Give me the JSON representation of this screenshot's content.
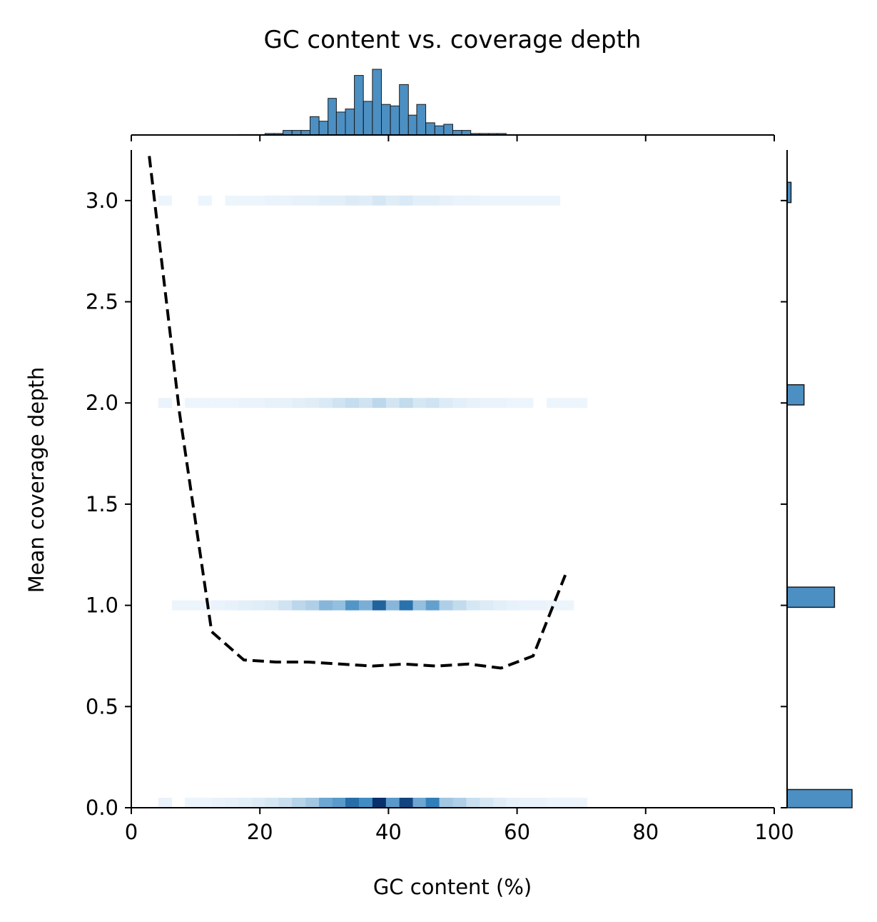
{
  "chart_data": {
    "type": "heatmap",
    "title": "GC content vs. coverage depth",
    "xlabel": "GC content (%)",
    "ylabel": "Mean coverage depth",
    "xlim": [
      0,
      100
    ],
    "ylim": [
      0,
      3.25
    ],
    "xticks": [
      "0",
      "20",
      "40",
      "60",
      "80",
      "100"
    ],
    "yticks": [
      "0.0",
      "0.5",
      "1.0",
      "1.5",
      "2.0",
      "2.5",
      "3.0"
    ],
    "grid": false,
    "colors": {
      "heat_low": "#f7fbff",
      "heat_high": "#08306b",
      "hist": "#4c8fc2",
      "trend": "#000000"
    },
    "heat_bin_width": 2.083,
    "heat_rows": [
      {
        "y": 0.0,
        "x": [
          4.2,
          8.3,
          10.4,
          12.5,
          14.6,
          16.7,
          18.8,
          20.8,
          22.9,
          25.0,
          27.1,
          29.2,
          31.3,
          33.3,
          35.4,
          37.5,
          39.6,
          41.7,
          43.8,
          45.8,
          47.9,
          50.0,
          52.1,
          54.2,
          56.3,
          58.3,
          60.4,
          62.5,
          64.6,
          66.7,
          68.8
        ],
        "density": [
          0.04,
          0.03,
          0.03,
          0.04,
          0.05,
          0.06,
          0.08,
          0.1,
          0.14,
          0.2,
          0.26,
          0.42,
          0.48,
          0.7,
          0.55,
          1.0,
          0.48,
          0.9,
          0.42,
          0.62,
          0.26,
          0.22,
          0.14,
          0.1,
          0.07,
          0.05,
          0.04,
          0.04,
          0.03,
          0.03,
          0.03
        ]
      },
      {
        "y": 1.0,
        "x": [
          6.3,
          8.3,
          10.4,
          12.5,
          14.6,
          16.7,
          18.8,
          20.8,
          22.9,
          25.0,
          27.1,
          29.2,
          31.3,
          33.3,
          35.4,
          37.5,
          39.6,
          41.7,
          43.8,
          45.8,
          47.9,
          50.0,
          52.1,
          54.2,
          56.3,
          58.3,
          60.4,
          62.5,
          64.6,
          66.7
        ],
        "density": [
          0.03,
          0.03,
          0.03,
          0.04,
          0.05,
          0.06,
          0.07,
          0.08,
          0.12,
          0.18,
          0.22,
          0.34,
          0.3,
          0.5,
          0.38,
          0.75,
          0.34,
          0.68,
          0.3,
          0.45,
          0.22,
          0.16,
          0.1,
          0.08,
          0.06,
          0.05,
          0.04,
          0.04,
          0.03,
          0.03
        ]
      },
      {
        "y": 2.0,
        "x": [
          4.2,
          8.3,
          10.4,
          12.5,
          14.6,
          16.7,
          18.8,
          20.8,
          22.9,
          25.0,
          27.1,
          29.2,
          31.3,
          33.3,
          35.4,
          37.5,
          39.6,
          41.7,
          43.8,
          45.8,
          47.9,
          50.0,
          52.1,
          54.2,
          56.3,
          58.3,
          60.4,
          64.6,
          66.7,
          68.8
        ],
        "density": [
          0.04,
          0.03,
          0.03,
          0.03,
          0.03,
          0.04,
          0.04,
          0.05,
          0.05,
          0.06,
          0.07,
          0.09,
          0.12,
          0.15,
          0.12,
          0.18,
          0.11,
          0.16,
          0.1,
          0.12,
          0.08,
          0.06,
          0.05,
          0.04,
          0.04,
          0.03,
          0.03,
          0.03,
          0.03,
          0.03
        ]
      },
      {
        "y": 3.0,
        "x": [
          4.2,
          10.4,
          14.6,
          16.7,
          18.8,
          20.8,
          22.9,
          25.0,
          27.1,
          29.2,
          31.3,
          33.3,
          35.4,
          37.5,
          39.6,
          41.7,
          43.8,
          45.8,
          47.9,
          50.0,
          52.1,
          54.2,
          56.3,
          58.3,
          60.4,
          62.5,
          64.6
        ],
        "density": [
          0.03,
          0.03,
          0.03,
          0.03,
          0.03,
          0.04,
          0.04,
          0.05,
          0.05,
          0.06,
          0.06,
          0.08,
          0.07,
          0.1,
          0.07,
          0.09,
          0.06,
          0.06,
          0.05,
          0.04,
          0.04,
          0.03,
          0.03,
          0.03,
          0.03,
          0.03,
          0.03
        ]
      }
    ],
    "trend_line": {
      "style": "dashed",
      "x": [
        2.8,
        7.5,
        12.5,
        17.5,
        22.5,
        27.5,
        32.5,
        37.5,
        42.5,
        47.5,
        52.5,
        57.5,
        62.5,
        67.5
      ],
      "y": [
        3.22,
        1.95,
        0.87,
        0.73,
        0.72,
        0.72,
        0.71,
        0.7,
        0.71,
        0.7,
        0.71,
        0.69,
        0.75,
        1.15
      ]
    },
    "top_histogram": {
      "bin_edges": [
        16.7,
        18.1,
        19.5,
        20.8,
        22.2,
        23.6,
        25.0,
        26.4,
        27.8,
        29.2,
        30.6,
        31.9,
        33.3,
        34.7,
        36.1,
        37.5,
        38.9,
        40.3,
        41.7,
        43.1,
        44.4,
        45.8,
        47.2,
        48.6,
        50.0,
        51.4,
        52.8,
        54.2,
        55.6,
        56.9,
        58.3
      ],
      "counts": [
        0.3,
        0.3,
        0.3,
        1.0,
        1.0,
        3.0,
        3.0,
        3.0,
        12.0,
        9.0,
        24.0,
        15.0,
        17.0,
        39.0,
        22.0,
        43.0,
        20.0,
        19.0,
        33.0,
        13.0,
        20.0,
        8.0,
        6.0,
        7.0,
        3.0,
        3.0,
        1.0,
        1.0,
        1.0,
        1.0
      ]
    },
    "right_histogram": {
      "bins": [
        {
          "y0": 0.0,
          "y1": 0.09,
          "count": 100
        },
        {
          "y0": 0.99,
          "y1": 1.09,
          "count": 73
        },
        {
          "y0": 1.99,
          "y1": 2.09,
          "count": 26
        },
        {
          "y0": 2.99,
          "y1": 3.09,
          "count": 6
        }
      ]
    }
  }
}
